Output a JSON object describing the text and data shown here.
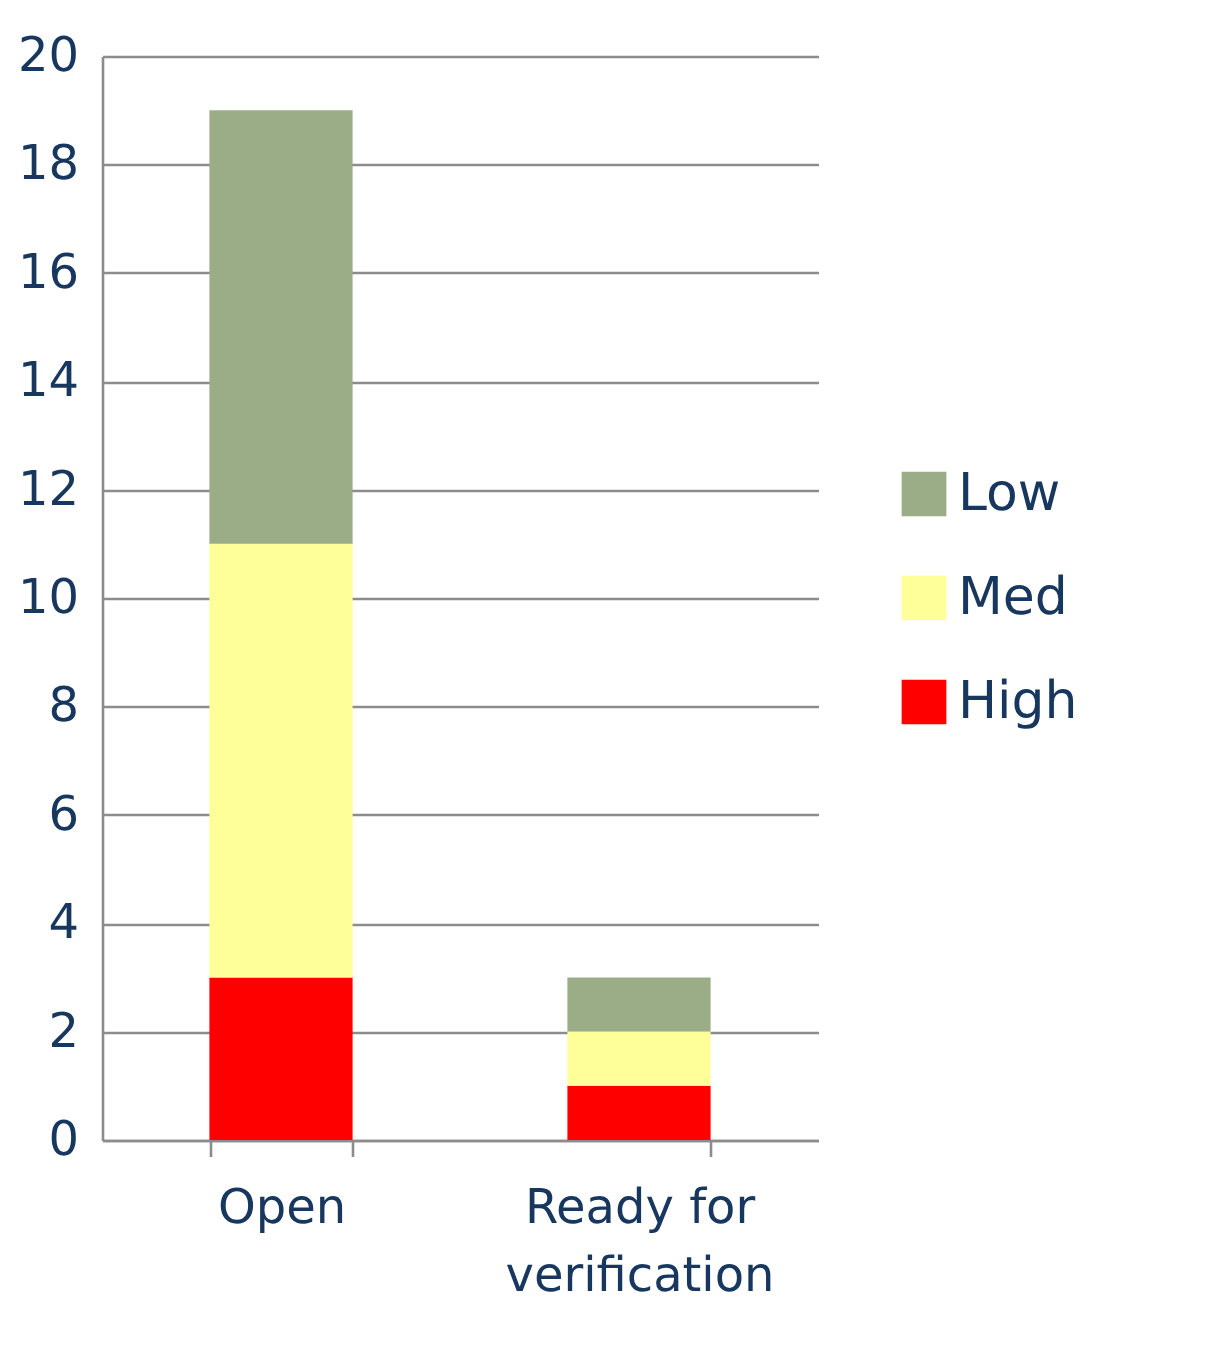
{
  "chart_data": {
    "type": "bar",
    "categories": [
      "Open",
      "Ready for verification"
    ],
    "stacked": true,
    "series": [
      {
        "name": "High",
        "color": "#ff0000",
        "values": [
          3,
          1
        ]
      },
      {
        "name": "Med",
        "color": "#ffff99",
        "values": [
          8,
          1
        ]
      },
      {
        "name": "Low",
        "color": "#9bad87",
        "values": [
          8,
          1
        ]
      }
    ],
    "ylim": [
      0,
      20
    ],
    "yticks": [
      0,
      2,
      4,
      6,
      8,
      10,
      12,
      14,
      16,
      18,
      20
    ],
    "grid": "y",
    "legend": "right"
  }
}
